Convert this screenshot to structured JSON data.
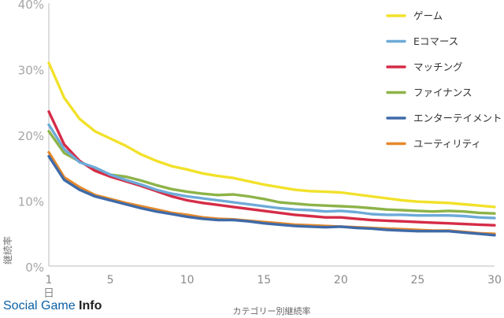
{
  "brand": {
    "part1": "Social Game ",
    "part2": "Info"
  },
  "chart_data": {
    "type": "line",
    "title": "",
    "xlabel": "カテゴリー別継続率",
    "ylabel": "継続率",
    "x_first_tick_suffix": "日",
    "x": [
      1,
      2,
      3,
      4,
      5,
      6,
      7,
      8,
      9,
      10,
      11,
      12,
      13,
      14,
      15,
      16,
      17,
      18,
      19,
      20,
      21,
      22,
      23,
      24,
      25,
      26,
      27,
      28,
      29,
      30
    ],
    "xticks": [
      1,
      5,
      10,
      15,
      20,
      25,
      30
    ],
    "yticks": [
      "0%",
      "10%",
      "20%",
      "30%",
      "40%"
    ],
    "ylim": [
      0,
      40
    ],
    "xlim": [
      1,
      30
    ],
    "grid": false,
    "legend_position": "top-right",
    "series": [
      {
        "name": "ゲーム",
        "color": "#f2e12a",
        "values": [
          30.9,
          25.6,
          22.4,
          20.5,
          19.4,
          18.3,
          17.0,
          16.0,
          15.2,
          14.7,
          14.1,
          13.7,
          13.4,
          12.9,
          12.4,
          12.0,
          11.6,
          11.4,
          11.3,
          11.2,
          10.9,
          10.6,
          10.3,
          10.0,
          9.8,
          9.7,
          9.6,
          9.4,
          9.2,
          9.0
        ]
      },
      {
        "name": "Eコマース",
        "color": "#6daad8",
        "values": [
          21.5,
          17.8,
          15.8,
          15.0,
          13.9,
          13.1,
          12.4,
          11.6,
          11.0,
          10.6,
          10.3,
          10.0,
          9.7,
          9.4,
          9.1,
          8.8,
          8.6,
          8.5,
          8.3,
          8.4,
          8.2,
          7.9,
          7.8,
          7.8,
          7.7,
          7.7,
          7.7,
          7.6,
          7.4,
          7.3
        ]
      },
      {
        "name": "マッチング",
        "color": "#d52c47",
        "values": [
          23.5,
          18.5,
          16.0,
          14.5,
          13.6,
          12.9,
          12.2,
          11.4,
          10.6,
          10.0,
          9.6,
          9.3,
          9.0,
          8.7,
          8.4,
          8.1,
          7.8,
          7.6,
          7.4,
          7.4,
          7.2,
          7.0,
          6.9,
          6.8,
          6.7,
          6.6,
          6.5,
          6.4,
          6.3,
          6.2
        ]
      },
      {
        "name": "ファイナンス",
        "color": "#8db348",
        "values": [
          20.5,
          17.2,
          15.9,
          14.8,
          13.9,
          13.6,
          13.0,
          12.3,
          11.7,
          11.3,
          11.0,
          10.8,
          10.9,
          10.6,
          10.2,
          9.7,
          9.5,
          9.3,
          9.2,
          9.1,
          9.0,
          8.8,
          8.6,
          8.5,
          8.4,
          8.3,
          8.4,
          8.3,
          8.1,
          8.0
        ]
      },
      {
        "name": "エンターテイメント",
        "color": "#3f6aa8",
        "values": [
          16.7,
          13.1,
          11.6,
          10.6,
          10.0,
          9.4,
          8.8,
          8.3,
          7.9,
          7.5,
          7.2,
          7.0,
          7.0,
          6.8,
          6.5,
          6.3,
          6.1,
          6.0,
          5.9,
          6.0,
          5.8,
          5.7,
          5.5,
          5.4,
          5.3,
          5.3,
          5.3,
          5.1,
          4.9,
          4.7
        ]
      },
      {
        "name": "ユーティリティ",
        "color": "#e5892b",
        "values": [
          17.3,
          13.5,
          12.0,
          10.8,
          10.2,
          9.6,
          9.1,
          8.6,
          8.1,
          7.8,
          7.4,
          7.2,
          7.1,
          6.9,
          6.7,
          6.5,
          6.3,
          6.2,
          6.1,
          6.0,
          5.9,
          5.8,
          5.7,
          5.6,
          5.5,
          5.4,
          5.4,
          5.2,
          5.0,
          4.9
        ]
      }
    ]
  }
}
